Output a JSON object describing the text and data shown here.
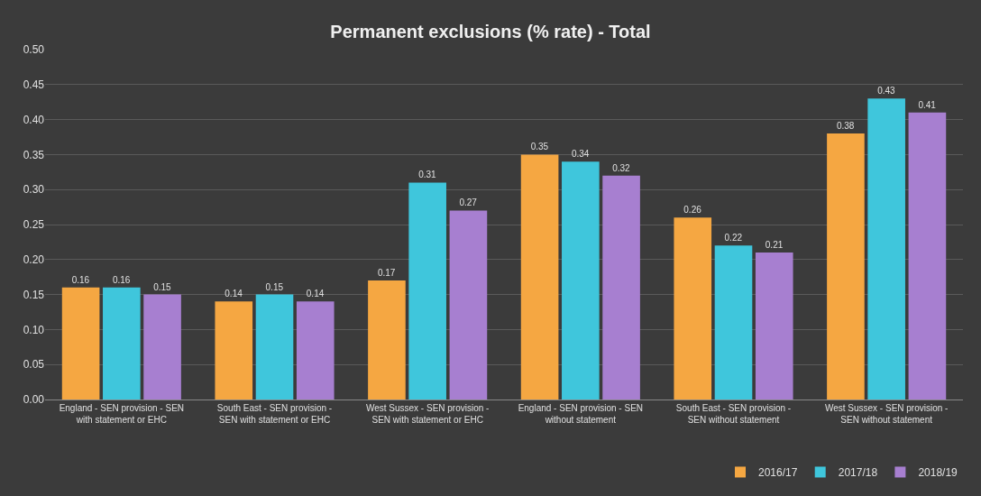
{
  "chart_data": {
    "type": "bar",
    "title": "Permanent exclusions (% rate) - Total",
    "categories": [
      "England - SEN provision - SEN with statement or EHC",
      "South East - SEN provision - SEN with statement or EHC",
      "West Sussex - SEN provision - SEN with statement or EHC",
      "England - SEN provision - SEN without statement",
      "South East - SEN provision - SEN without statement",
      "West Sussex - SEN provision - SEN without statement"
    ],
    "series": [
      {
        "name": "2016/17",
        "color": "#f5a742",
        "values": [
          0.16,
          0.14,
          0.17,
          0.35,
          0.26,
          0.38
        ]
      },
      {
        "name": "2017/18",
        "color": "#3fc6dc",
        "values": [
          0.16,
          0.15,
          0.31,
          0.34,
          0.22,
          0.43
        ]
      },
      {
        "name": "2018/19",
        "color": "#a77fd0",
        "values": [
          0.15,
          0.14,
          0.27,
          0.32,
          0.21,
          0.41
        ]
      }
    ],
    "ylim": [
      0,
      0.5
    ],
    "yticks": [
      {
        "value": 0,
        "label": "0.00"
      },
      {
        "value": 0.05,
        "label": "0.05"
      },
      {
        "value": 0.1,
        "label": "0.10"
      },
      {
        "value": 0.15,
        "label": "0.15"
      },
      {
        "value": 0.2,
        "label": "0.20"
      },
      {
        "value": 0.25,
        "label": "0.25"
      },
      {
        "value": 0.3,
        "label": "0.30"
      },
      {
        "value": 0.35,
        "label": "0.35"
      },
      {
        "value": 0.4,
        "label": "0.40"
      },
      {
        "value": 0.45,
        "label": "0.45"
      },
      {
        "value": 0.5,
        "label": "0.50"
      }
    ],
    "grid": "y",
    "legend": "bottom right",
    "data_labels": true
  }
}
